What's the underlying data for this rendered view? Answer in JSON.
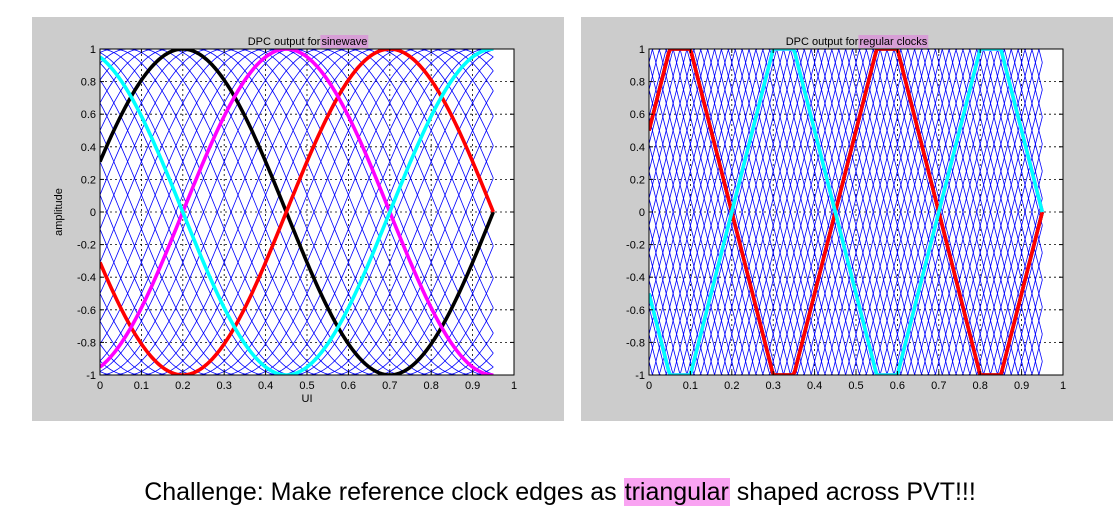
{
  "colors": {
    "panel_bg": "#cccccc",
    "plot_bg": "#ffffff",
    "family_lines": "#0000ff",
    "title_highlight": "#d79ed6",
    "caption_highlight": "#f9a3f2",
    "emphasis": [
      "#000000",
      "#ff0000",
      "#ff00ff",
      "#00ffff"
    ]
  },
  "chart_data": [
    {
      "type": "line",
      "title_prefix": "DPC output for ",
      "title_highlight": "sinewave",
      "xlabel": "UI",
      "ylabel": "amplitude",
      "xlim": [
        0,
        1
      ],
      "ylim": [
        -1,
        1
      ],
      "xticks": [
        "0",
        "0.1",
        "0.2",
        "0.3",
        "0.4",
        "0.5",
        "0.6",
        "0.7",
        "0.8",
        "0.9",
        "1"
      ],
      "yticks": [
        "1",
        "0.8",
        "0.6",
        "0.4",
        "0.2",
        "0",
        "-0.2",
        "-0.4",
        "-0.6",
        "-0.8",
        "-1"
      ],
      "grid": true,
      "waveform": "sinusoid",
      "period": 1,
      "x_range": [
        0,
        0.95
      ],
      "family": {
        "color": "#0000ff",
        "count": 30,
        "note_phase_step": 0.0333
      },
      "series": [
        {
          "color": "#000000",
          "peak_at": 0.2
        },
        {
          "color": "#ff0000",
          "peak_at": 0.7
        },
        {
          "color": "#ff00ff",
          "peak_at": 0.45
        },
        {
          "color": "#00ffff",
          "peak_at": 0.95
        }
      ]
    },
    {
      "type": "line",
      "title_prefix": "DPC output for ",
      "title_highlight": "regular clocks",
      "xlabel": "",
      "ylabel": "",
      "xlim": [
        0,
        1
      ],
      "ylim": [
        -1,
        1
      ],
      "xticks": [
        "0",
        "0.1",
        "0.2",
        "0.3",
        "0.4",
        "0.5",
        "0.6",
        "0.7",
        "0.8",
        "0.9",
        "1"
      ],
      "yticks": [
        "1",
        "0.8",
        "0.6",
        "0.4",
        "0.2",
        "0",
        "-0.2",
        "-0.4",
        "-0.6",
        "-0.8",
        "-1"
      ],
      "grid": true,
      "waveform": "trapezoid",
      "period": 0.5,
      "x_range": [
        0,
        0.95
      ],
      "family": {
        "color": "#0000ff",
        "count": 30
      },
      "series": [
        {
          "color": "#000000",
          "peak_at": 0.075
        },
        {
          "color": "#ff0000",
          "peak_at": 0.575
        },
        {
          "color": "#ff00ff",
          "peak_at": 0.325
        },
        {
          "color": "#00ffff",
          "peak_at": 0.825
        }
      ]
    }
  ],
  "caption": {
    "before": "Challenge: Make reference clock edges as ",
    "highlight": "triangular",
    "after": " shaped across PVT!!!"
  }
}
